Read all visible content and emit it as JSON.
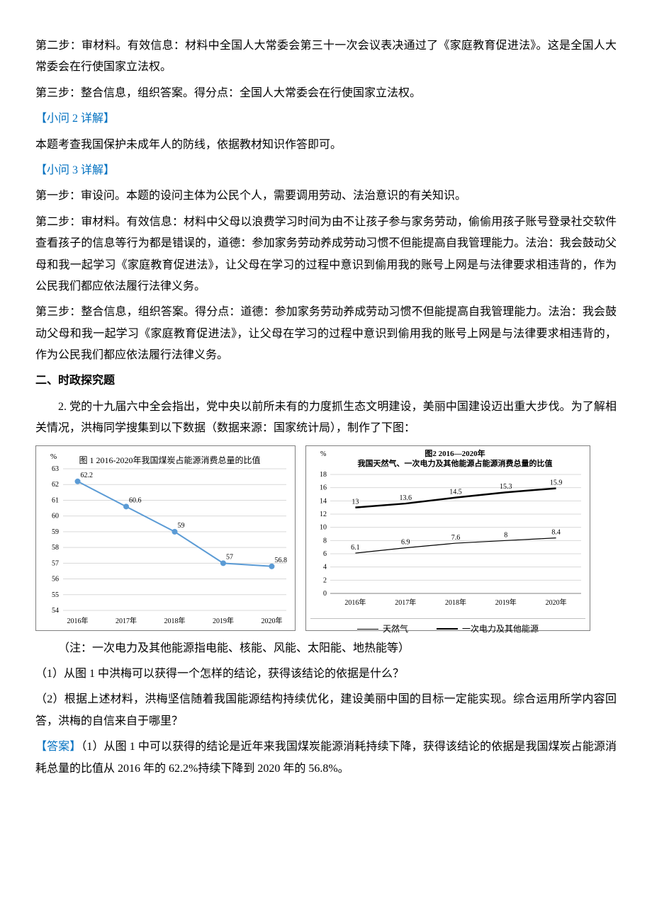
{
  "paragraphs": {
    "p1": "第二步：审材料。有效信息：材料中全国人大常委会第三十一次会议表决通过了《家庭教育促进法》。这是全国人大常委会在行使国家立法权。",
    "p2": "第三步：整合信息，组织答案。得分点：全国人大常委会在行使国家立法权。",
    "sub2_title": "【小问 2 详解】",
    "p3": "本题考查我国保护未成年人的防线，依据教材知识作答即可。",
    "sub3_title": "【小问 3 详解】",
    "p4": "第一步：审设问。本题的设问主体为公民个人，需要调用劳动、法治意识的有关知识。",
    "p5": "第二步：审材料。有效信息：材料中父母以浪费学习时间为由不让孩子参与家务劳动，偷偷用孩子账号登录社交软件查看孩子的信息等行为都是错误的，道德：参加家务劳动养成劳动习惯不但能提高自我管理能力。法治：我会鼓动父母和我一起学习《家庭教育促进法》，让父母在学习的过程中意识到偷用我的账号上网是与法律要求相违背的，作为公民我们都应依法履行法律义务。",
    "p6": "第三步：整合信息，组织答案。得分点：道德：参加家务劳动养成劳动习惯不但能提高自我管理能力。法治：我会鼓动父母和我一起学习《家庭教育促进法》，让父母在学习的过程中意识到偷用我的账号上网是与法律要求相违背的，作为公民我们都应依法履行法律义务。",
    "section2_title": "二、时政探究题",
    "q2_intro": "2. 党的十九届六中全会指出，党中央以前所未有的力度抓生态文明建设，美丽中国建设迈出重大步伐。为了解相关情况，洪梅同学搜集到以下数据（数据来源：国家统计局），制作了下图：",
    "chart_note": "（注：一次电力及其他能源指电能、核能、风能、太阳能、地热能等）",
    "q2_1": "（1）从图 1 中洪梅可以获得一个怎样的结论，获得该结论的依据是什么？",
    "q2_2": "（2）根据上述材料，洪梅坚信随着我国能源结构持续优化，建设美丽中国的目标一定能实现。综合运用所学内容回答，洪梅的自信来自于哪里？",
    "answer_label": "【答案】",
    "answer_text": "（1）从图 1 中可以获得的结论是近年来我国煤炭能源消耗持续下降，获得该结论的依据是我国煤炭占能源消耗总量的比值从 2016 年的 62.2%持续下降到 2020 年的 56.8%。"
  },
  "chart1": {
    "type": "line",
    "title": "图 1  2016-2020年我国煤炭占能源消费总量的比值",
    "title_fontsize": 12,
    "y_unit": "%",
    "categories": [
      "2016年",
      "2017年",
      "2018年",
      "2019年",
      "2020年"
    ],
    "values": [
      62.2,
      60.6,
      59,
      57,
      56.8
    ],
    "value_labels": [
      "62.2",
      "60.6",
      "59",
      "57",
      "56.8"
    ],
    "line_color": "#5b9bd5",
    "marker_color": "#5b9bd5",
    "ylim": [
      54,
      63
    ],
    "ytick_step": 1,
    "grid_color": "#d9d9d9",
    "background_color": "#ffffff",
    "axis_label_fontsize": 10,
    "tick_fontsize": 10,
    "line_width": 2,
    "marker_size": 4
  },
  "chart2": {
    "type": "line",
    "title_line1": "图2  2016—2020年",
    "title_line2": "我国天然气、一次电力及其他能源占能源消费总量的比值",
    "title_fontsize": 11,
    "y_unit": "%",
    "categories": [
      "2016年",
      "2017年",
      "2018年",
      "2019年",
      "2020年"
    ],
    "series": [
      {
        "name": "天然气",
        "values": [
          6.1,
          6.9,
          7.6,
          8,
          8.4
        ],
        "value_labels": [
          "6.1",
          "6.9",
          "7.6",
          "8",
          "8.4"
        ],
        "color": "#000000",
        "line_width": 1.2
      },
      {
        "name": "一次电力及其他能源",
        "values": [
          13,
          13.6,
          14.5,
          15.3,
          15.9
        ],
        "value_labels": [
          "13",
          "13.6",
          "14.5",
          "15.3",
          "15.9"
        ],
        "color": "#000000",
        "line_width": 2.5
      }
    ],
    "ylim": [
      0,
      18
    ],
    "ytick_step": 2,
    "grid_color": "#d9d9d9",
    "background_color": "#ffffff",
    "axis_label_fontsize": 10,
    "tick_fontsize": 10,
    "legend_labels": [
      "天然气",
      "一次电力及其他能源"
    ]
  }
}
